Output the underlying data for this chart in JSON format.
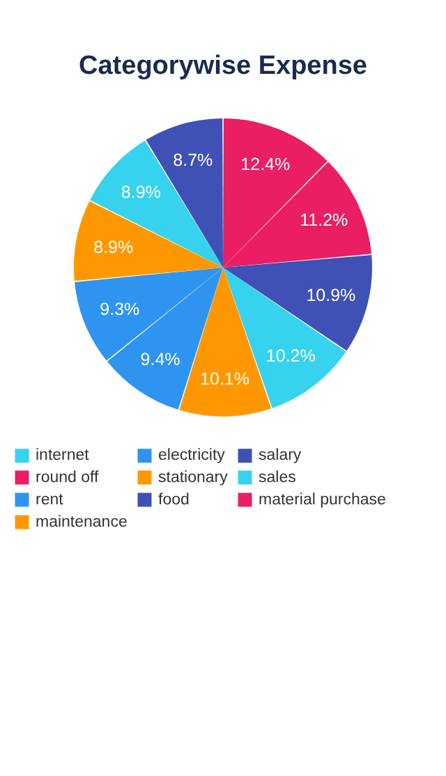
{
  "chart_data": {
    "type": "pie",
    "title": "Categorywise Expense",
    "categories": [
      "internet",
      "electricity",
      "salary",
      "round off",
      "stationary",
      "sales",
      "rent",
      "food",
      "material purchase",
      "maintenance"
    ],
    "values": [
      10.2,
      9.4,
      10.9,
      12.4,
      10.1,
      8.9,
      9.3,
      8.7,
      11.2,
      8.9
    ],
    "value_labels": [
      "10.2%",
      "9.4%",
      "10.9%",
      "12.4%",
      "10.1%",
      "8.9%",
      "9.3%",
      "8.7%",
      "11.2%",
      "8.9%"
    ],
    "colors": [
      "#37d3ee",
      "#2e94ef",
      "#3f51b5",
      "#e91e63",
      "#ff9800",
      "#37d3ee",
      "#2e94ef",
      "#3f51b5",
      "#e91e63",
      "#ff9800"
    ],
    "legend": "bottom"
  }
}
